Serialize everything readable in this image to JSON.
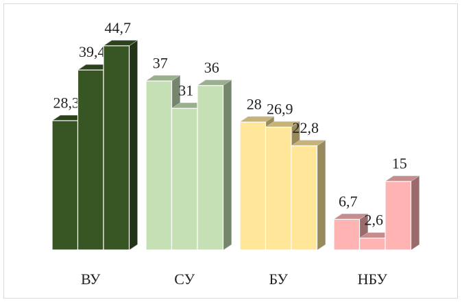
{
  "chart_data": {
    "type": "bar3d",
    "categories": [
      "ВУ",
      "СУ",
      "БУ",
      "НБУ"
    ],
    "colors": [
      "#375623",
      "#c5e0b4",
      "#ffe699",
      "#ffb3b3"
    ],
    "series": [
      {
        "values": [
          28.3,
          37,
          28,
          6.7
        ],
        "value_labels": [
          "28,3",
          "37",
          "28",
          "6,7"
        ]
      },
      {
        "values": [
          39.4,
          31,
          26.9,
          2.6
        ],
        "value_labels": [
          "39,4",
          "31",
          "26,9",
          "2,6"
        ]
      },
      {
        "values": [
          44.7,
          36,
          22.8,
          15
        ],
        "value_labels": [
          "44,7",
          "36",
          "22,8",
          "15"
        ]
      }
    ]
  }
}
